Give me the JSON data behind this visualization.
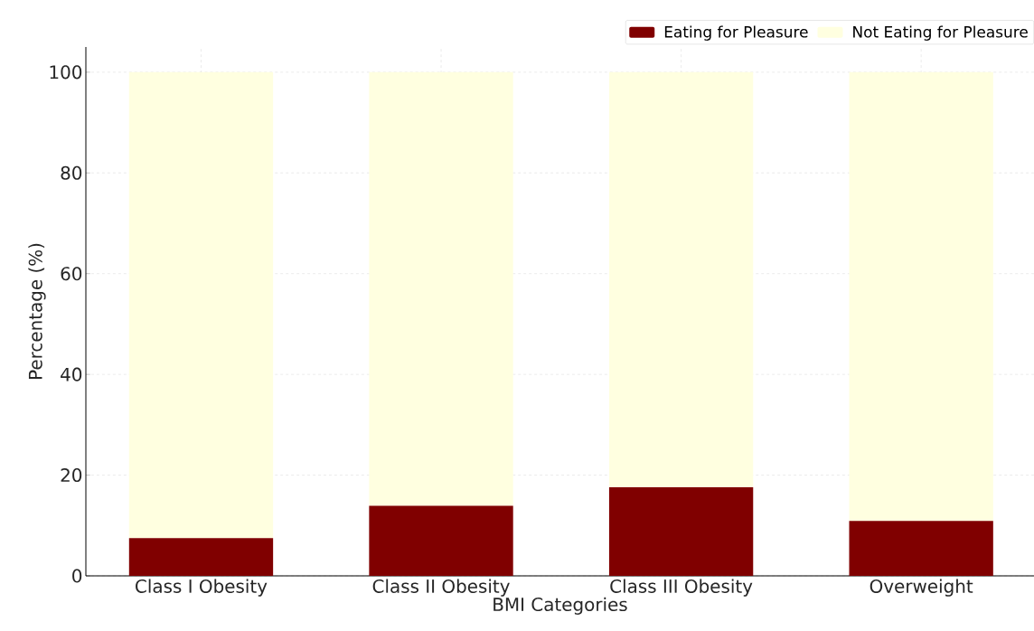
{
  "chart_data": {
    "type": "bar",
    "stacked": true,
    "categories": [
      "Class I Obesity",
      "Class II Obesity",
      "Class III Obesity",
      "Overweight"
    ],
    "series": [
      {
        "name": "Eating for Pleasure",
        "color": "#800000",
        "values": [
          7.5,
          13.9,
          17.6,
          10.9
        ]
      },
      {
        "name": "Not Eating for Pleasure",
        "color": "#ffffe0",
        "values": [
          92.5,
          86.1,
          82.4,
          89.1
        ]
      }
    ],
    "xlabel": "BMI Categories",
    "ylabel": "Percentage (%)",
    "ylim": [
      0,
      105
    ],
    "yticks": [
      0,
      20,
      40,
      60,
      80,
      100
    ],
    "grid": true,
    "legend": "top right"
  }
}
